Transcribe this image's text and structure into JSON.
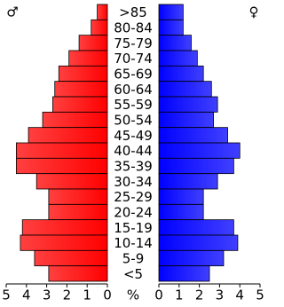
{
  "chart_data": {
    "type": "pyramid",
    "left_symbol": "♂",
    "right_symbol": "♀",
    "xlabel": "%",
    "categories": [
      ">85",
      "80-84",
      "75-79",
      "70-74",
      "65-69",
      "60-64",
      "55-59",
      "50-54",
      "45-49",
      "40-44",
      "35-39",
      "30-34",
      "25-29",
      "20-24",
      "15-19",
      "10-14",
      "5-9",
      "<5"
    ],
    "series": [
      {
        "name": "♂",
        "color": "#ff0000",
        "side": "left",
        "values": [
          0.5,
          0.8,
          1.4,
          1.9,
          2.4,
          2.6,
          2.7,
          3.2,
          3.9,
          4.5,
          4.5,
          3.5,
          2.9,
          2.9,
          4.2,
          4.3,
          3.6,
          2.9
        ]
      },
      {
        "name": "♀",
        "color": "#0000ff",
        "side": "right",
        "values": [
          1.2,
          1.2,
          1.6,
          1.9,
          2.2,
          2.6,
          2.9,
          2.7,
          3.4,
          4.0,
          3.7,
          2.9,
          2.2,
          2.2,
          3.7,
          3.9,
          3.2,
          2.5
        ]
      }
    ],
    "xlim": [
      0,
      5
    ],
    "xticks": [
      0,
      1,
      2,
      3,
      4,
      5
    ]
  }
}
